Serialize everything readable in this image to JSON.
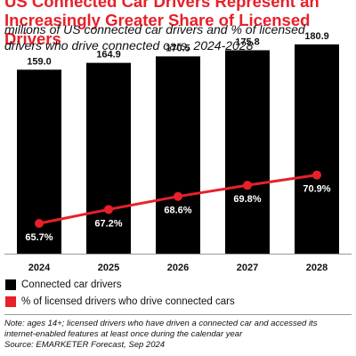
{
  "title_line1": "US Connected Car Drivers Represent an",
  "title_line2": "Increasingly Greater Share of Licensed Drivers",
  "subtitle_line1": "millions of US connected car drivers and % of licensed",
  "subtitle_line2": "drivers who drive connected cars, 2024-2028",
  "legend": {
    "bars": "Connected car drivers",
    "line": "% of licensed drivers who drive connected cars"
  },
  "note_line1": "Note: ages 14+; licensed drivers who have driven a connected car and accessed its",
  "note_line2": "internet-enabled features at least once during the calendar year",
  "source": "Source: EMARKETER Forecast, Sep 2024",
  "colors": {
    "bars": "#000000",
    "line": "#e8202a",
    "title": "#e8202a"
  },
  "chart_data": {
    "type": "bar",
    "categories": [
      "2024",
      "2025",
      "2026",
      "2027",
      "2028"
    ],
    "series": [
      {
        "name": "Connected car drivers",
        "type": "bar",
        "values": [
          159.0,
          164.9,
          170.5,
          175.8,
          180.9
        ],
        "labels": [
          "159.0",
          "164.9",
          "170.5",
          "175.8",
          "180.9"
        ]
      },
      {
        "name": "% of licensed drivers who drive connected cars",
        "type": "line",
        "values": [
          65.7,
          67.2,
          68.6,
          69.8,
          70.9
        ],
        "labels": [
          "65.7%",
          "67.2%",
          "68.6%",
          "69.8%",
          "70.9%"
        ]
      }
    ],
    "legend_position": "bottom-left",
    "grid": false
  }
}
